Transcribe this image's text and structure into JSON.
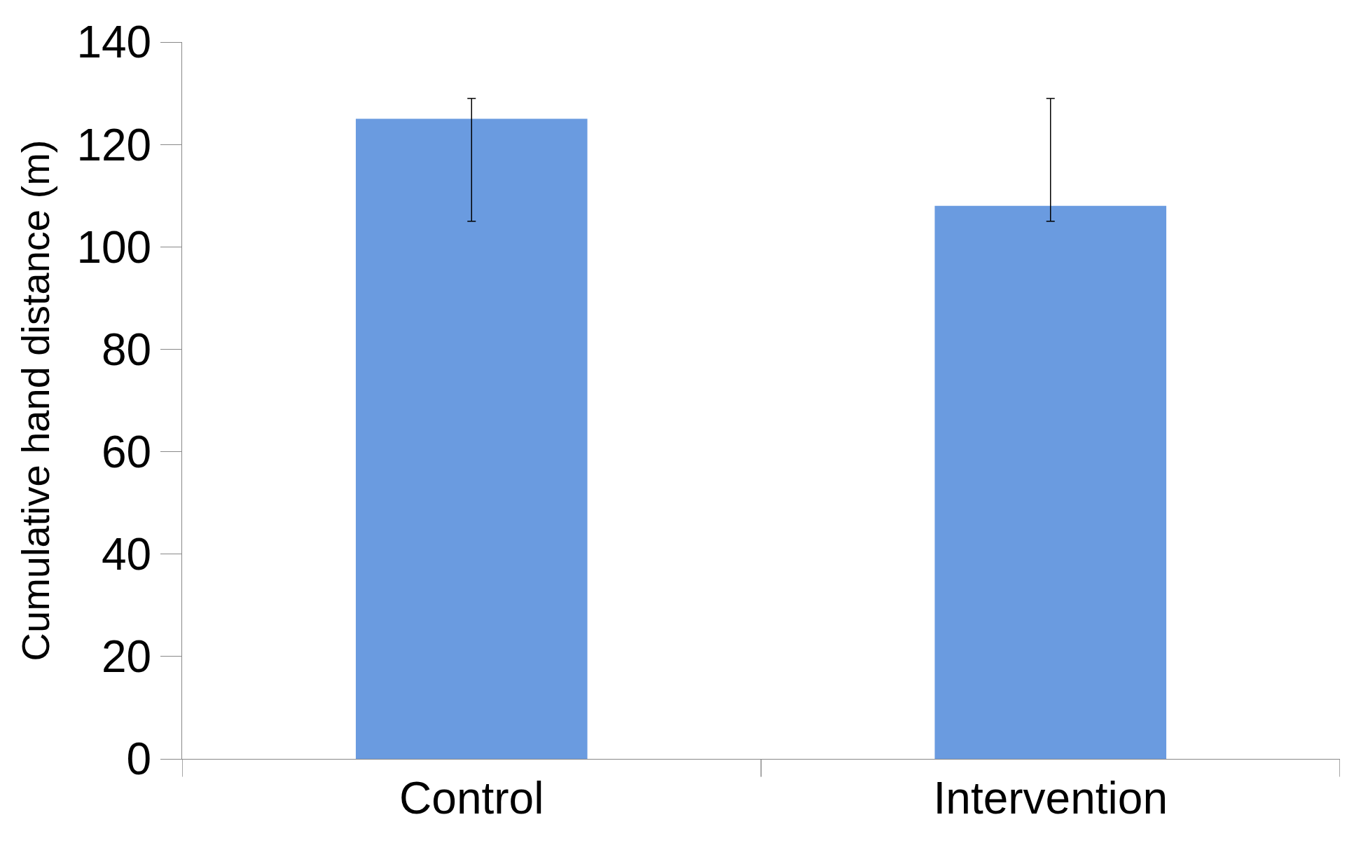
{
  "chart_data": {
    "type": "bar",
    "ylabel": "Cumulative hand distance (m)",
    "categories": [
      "Control",
      "Intervention"
    ],
    "values": [
      125,
      108
    ],
    "color": "#6a9be0",
    "errors": [
      [
        105,
        129
      ],
      [
        105,
        129
      ]
    ],
    "ylim": [
      0,
      140
    ],
    "yticks": [
      0,
      20,
      40,
      60,
      80,
      100,
      120,
      140
    ]
  }
}
